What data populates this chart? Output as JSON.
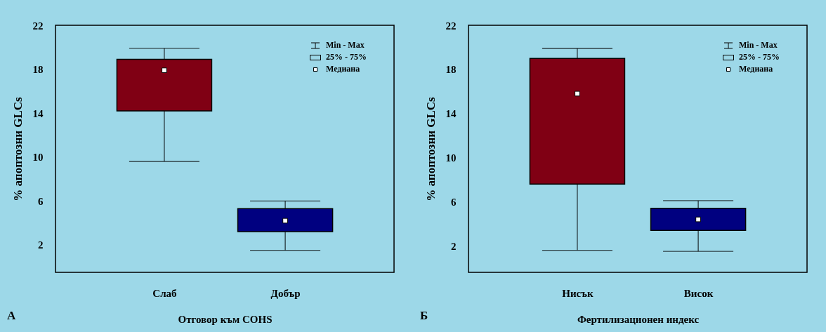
{
  "chart_data": [
    {
      "type": "box",
      "xlabel": "Отговор към COHS",
      "ylabel": "% апоптозни GLCs",
      "categories": [
        "Слаб",
        "Добър"
      ],
      "colors": [
        "#800014",
        "#000080"
      ],
      "ylim": [
        -0.5,
        22
      ],
      "yticks": [
        2,
        6,
        10,
        14,
        18,
        22
      ],
      "boxes": [
        {
          "low": 9.6,
          "q1": 14.2,
          "median": 17.9,
          "q3": 18.9,
          "high": 19.9
        },
        {
          "low": 1.5,
          "q1": 3.2,
          "median": 4.2,
          "q3": 5.3,
          "high": 6.0
        }
      ],
      "annotations": [
        "А",
        "Min - Max",
        "25% - 75%",
        "Медиана"
      ]
    },
    {
      "type": "box",
      "xlabel": "Фертилизационен индекс",
      "ylabel": "% апоптозни GLCs",
      "categories": [
        "Нисък",
        "Висок"
      ],
      "colors": [
        "#800014",
        "#000080"
      ],
      "ylim": [
        -0.4,
        22
      ],
      "yticks": [
        2,
        6,
        10,
        14,
        18,
        22
      ],
      "boxes": [
        {
          "low": 1.6,
          "q1": 7.6,
          "median": 15.8,
          "q3": 19.0,
          "high": 19.9
        },
        {
          "low": 1.5,
          "q1": 3.4,
          "median": 4.4,
          "q3": 5.4,
          "high": 6.1
        }
      ],
      "annotations": [
        "Б",
        "Min - Max",
        "25% - 75%",
        "Медиана"
      ]
    }
  ]
}
